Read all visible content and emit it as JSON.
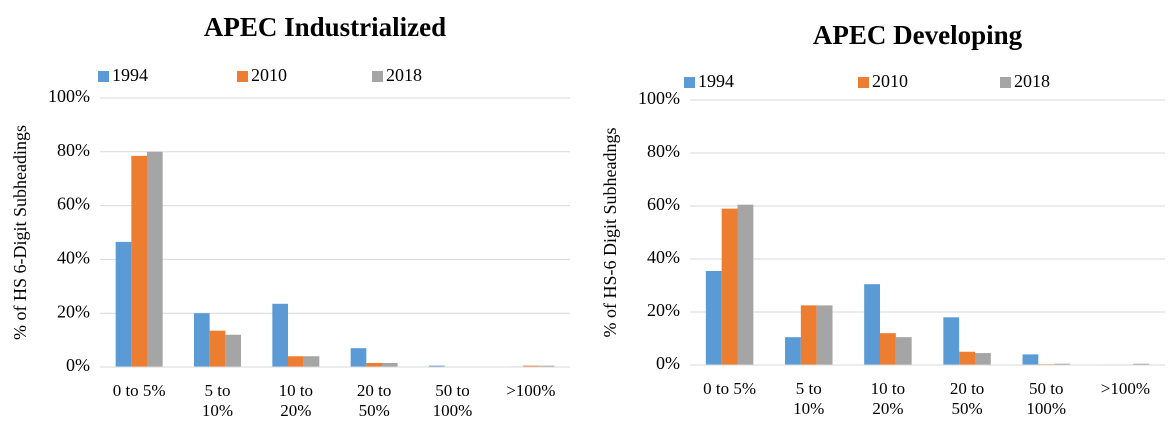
{
  "chart_data": [
    {
      "type": "bar",
      "title": "APEC Industrialized",
      "y_label": "% of HS 6-Digit Subheadings",
      "categories": [
        "0 to 5%",
        "5 to 10%",
        "10 to 20%",
        "20 to 50%",
        "50 to 100%",
        ">100%"
      ],
      "series": [
        {
          "name": "1994",
          "color": "#5b9bd5",
          "values": [
            46.5,
            20,
            23.5,
            7,
            0.5,
            0.2
          ]
        },
        {
          "name": "2010",
          "color": "#ed7d31",
          "values": [
            78.5,
            13.5,
            4,
            1.5,
            0.1,
            0.5
          ]
        },
        {
          "name": "2018",
          "color": "#a5a5a5",
          "values": [
            80,
            12,
            4,
            1.5,
            0.1,
            0.5
          ]
        }
      ],
      "ylim": [
        0,
        100
      ],
      "yticks": [
        {
          "value": 0,
          "label": "0%"
        },
        {
          "value": 20,
          "label": "20%"
        },
        {
          "value": 40,
          "label": "40%"
        },
        {
          "value": 60,
          "label": "60%"
        },
        {
          "value": 80,
          "label": "80%"
        },
        {
          "value": 100,
          "label": "100%"
        }
      ],
      "grid": true,
      "legend": "top"
    },
    {
      "type": "bar",
      "title": "APEC Developing",
      "y_label": "% of HS-6 Digit Subheadngs",
      "categories": [
        "0 to 5%",
        "5 to 10%",
        "10 to 20%",
        "20 to 50%",
        "50 to 100%",
        ">100%"
      ],
      "series": [
        {
          "name": "1994",
          "color": "#5b9bd5",
          "values": [
            35.5,
            10.5,
            30.5,
            18,
            4,
            0.2
          ]
        },
        {
          "name": "2010",
          "color": "#ed7d31",
          "values": [
            59,
            22.5,
            12,
            5,
            0.3,
            0.2
          ]
        },
        {
          "name": "2018",
          "color": "#a5a5a5",
          "values": [
            60.5,
            22.5,
            10.5,
            4.5,
            0.5,
            0.5
          ]
        }
      ],
      "ylim": [
        0,
        100
      ],
      "yticks": [
        {
          "value": 0,
          "label": "0%"
        },
        {
          "value": 20,
          "label": "20%"
        },
        {
          "value": 40,
          "label": "40%"
        },
        {
          "value": 60,
          "label": "60%"
        },
        {
          "value": 80,
          "label": "80%"
        },
        {
          "value": 100,
          "label": "100%"
        }
      ],
      "grid": true,
      "legend": "top"
    }
  ]
}
